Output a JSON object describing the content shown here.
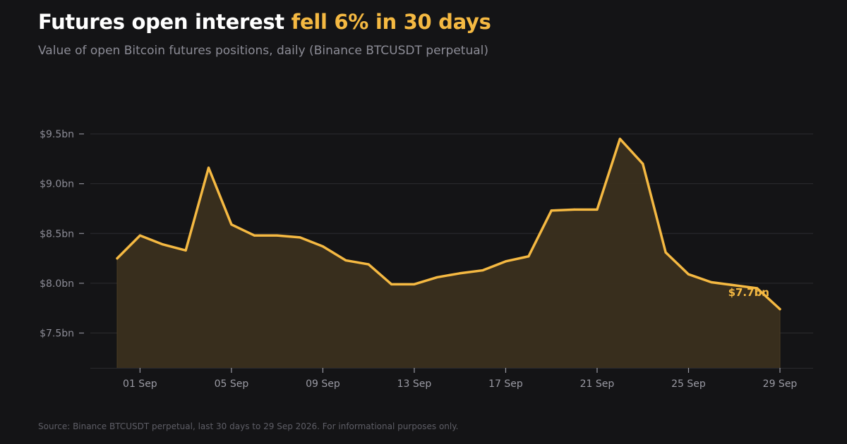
{
  "header": {
    "title_main": "Futures open interest ",
    "title_accent": "fell 6% in 30 days",
    "subtitle": "Value of open Bitcoin futures positions, daily (Binance BTCUSDT perpetual)"
  },
  "footer": {
    "source": "Source: Binance BTCUSDT perpetual, last 30 days to 29 Sep 2026.  For informational purposes only."
  },
  "colors": {
    "background": "#141416",
    "line": "#f5b942",
    "area": "#3a2f1d",
    "grid": "#2c2c30",
    "tick_text": "#8c8c96"
  },
  "chart_data": {
    "type": "area",
    "title": "Futures open interest fell 6% in 30 days",
    "subtitle": "Value of open Bitcoin futures positions, daily (Binance BTCUSDT perpetual)",
    "unit": "$bn",
    "ylim": [
      7.15,
      9.5
    ],
    "yticks": [
      7.5,
      8.0,
      8.5,
      9.0,
      9.5
    ],
    "ytick_labels": [
      "$7.5bn",
      "$8.0bn",
      "$8.5bn",
      "$9.0bn",
      "$9.5bn"
    ],
    "xticks": [
      "2026-09-01",
      "2026-09-05",
      "2026-09-09",
      "2026-09-13",
      "2026-09-17",
      "2026-09-21",
      "2026-09-25",
      "2026-09-29"
    ],
    "xtick_labels": [
      "01 Sep",
      "05 Sep",
      "09 Sep",
      "13 Sep",
      "17 Sep",
      "21 Sep",
      "25 Sep",
      "29 Sep"
    ],
    "grid": true,
    "end_label": "$7.7bn",
    "series": [
      {
        "x": [
          "2026-08-31",
          "2026-09-01",
          "2026-09-02",
          "2026-09-03",
          "2026-09-04",
          "2026-09-05",
          "2026-09-06",
          "2026-09-07",
          "2026-09-08",
          "2026-09-09",
          "2026-09-10",
          "2026-09-11",
          "2026-09-12",
          "2026-09-13",
          "2026-09-14",
          "2026-09-15",
          "2026-09-16",
          "2026-09-17",
          "2026-09-18",
          "2026-09-19",
          "2026-09-20",
          "2026-09-21",
          "2026-09-22",
          "2026-09-23",
          "2026-09-24",
          "2026-09-25",
          "2026-09-26",
          "2026-09-27",
          "2026-09-28",
          "2026-09-29"
        ],
        "values": [
          8.25,
          8.48,
          8.39,
          8.33,
          9.16,
          8.59,
          8.48,
          8.48,
          8.46,
          8.37,
          8.23,
          8.19,
          7.99,
          7.99,
          8.06,
          8.1,
          8.13,
          8.22,
          8.27,
          8.73,
          8.74,
          8.74,
          9.45,
          9.2,
          8.31,
          8.09,
          8.01,
          7.98,
          7.95,
          7.74
        ]
      }
    ]
  }
}
